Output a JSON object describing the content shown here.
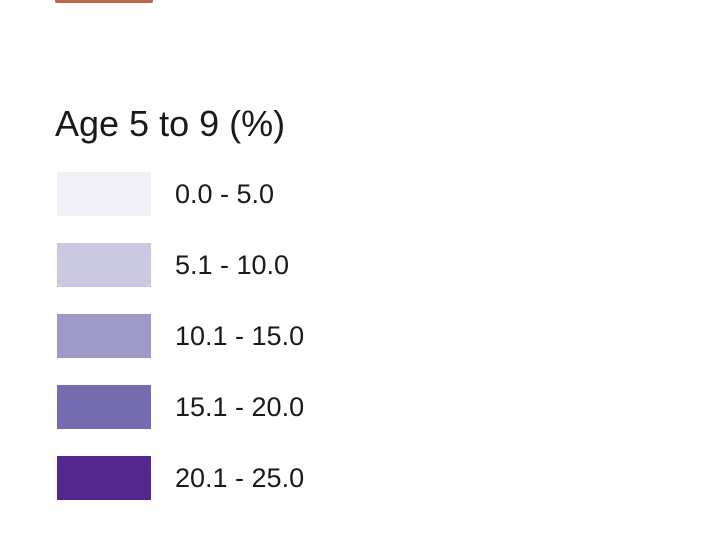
{
  "legend": {
    "title": "Age 5 to 9 (%)",
    "items": [
      {
        "label": "0.0 - 5.0",
        "color": "#f2f0f7"
      },
      {
        "label": "5.1 - 10.0",
        "color": "#cbc9e2"
      },
      {
        "label": "10.1 - 15.0",
        "color": "#9e9ac8"
      },
      {
        "label": "15.1 - 20.0",
        "color": "#756bb1"
      },
      {
        "label": "20.1 - 25.0",
        "color": "#54278f"
      }
    ]
  }
}
